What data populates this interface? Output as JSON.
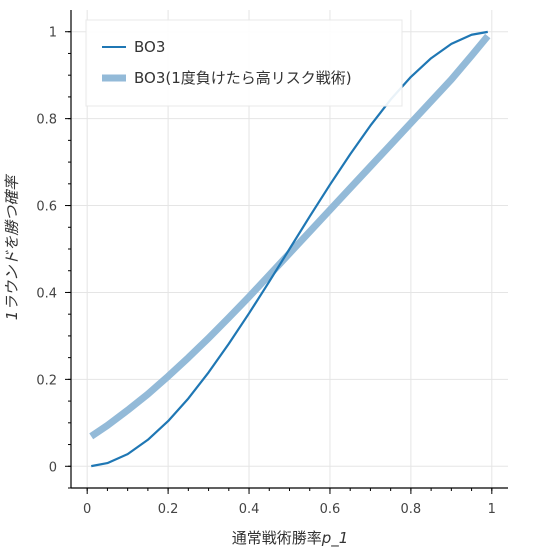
{
  "chart_data": {
    "type": "line",
    "xlabel_main": "通常戦術勝率",
    "xlabel_var": "p_1",
    "ylabel": "1ラウンドを勝つ確率",
    "xlim": [
      -0.04,
      1.04
    ],
    "ylim": [
      -0.05,
      1.05
    ],
    "x_ticks": [
      0,
      0.2,
      0.4,
      0.6,
      0.8,
      1
    ],
    "y_ticks": [
      0,
      0.2,
      0.4,
      0.6,
      0.8,
      1
    ],
    "x_tick_labels": [
      "0",
      "0.2",
      "0.4",
      "0.6",
      "0.8",
      "1"
    ],
    "y_tick_labels": [
      "0",
      "0.2",
      "0.4",
      "0.6",
      "0.8",
      "1"
    ],
    "grid": true,
    "legend_position": "top-left",
    "x": [
      0.01,
      0.05,
      0.1,
      0.15,
      0.2,
      0.25,
      0.3,
      0.35,
      0.4,
      0.45,
      0.5,
      0.55,
      0.6,
      0.65,
      0.7,
      0.75,
      0.8,
      0.85,
      0.9,
      0.95,
      0.99
    ],
    "series": [
      {
        "name": "BO3",
        "color": "#1f77b4",
        "values": [
          0.0003,
          0.0073,
          0.028,
          0.061,
          0.104,
          0.156,
          0.216,
          0.282,
          0.352,
          0.425,
          0.5,
          0.575,
          0.648,
          0.718,
          0.784,
          0.844,
          0.896,
          0.939,
          0.972,
          0.993,
          0.9997
        ]
      },
      {
        "name": "BO3(1度負けたら高リスク戦術)",
        "color": "#93bad8",
        "values": [
          0.069,
          0.094,
          0.129,
          0.166,
          0.207,
          0.25,
          0.295,
          0.342,
          0.39,
          0.44,
          0.49,
          0.54,
          0.59,
          0.64,
          0.69,
          0.74,
          0.79,
          0.84,
          0.89,
          0.945,
          0.99
        ]
      }
    ]
  }
}
